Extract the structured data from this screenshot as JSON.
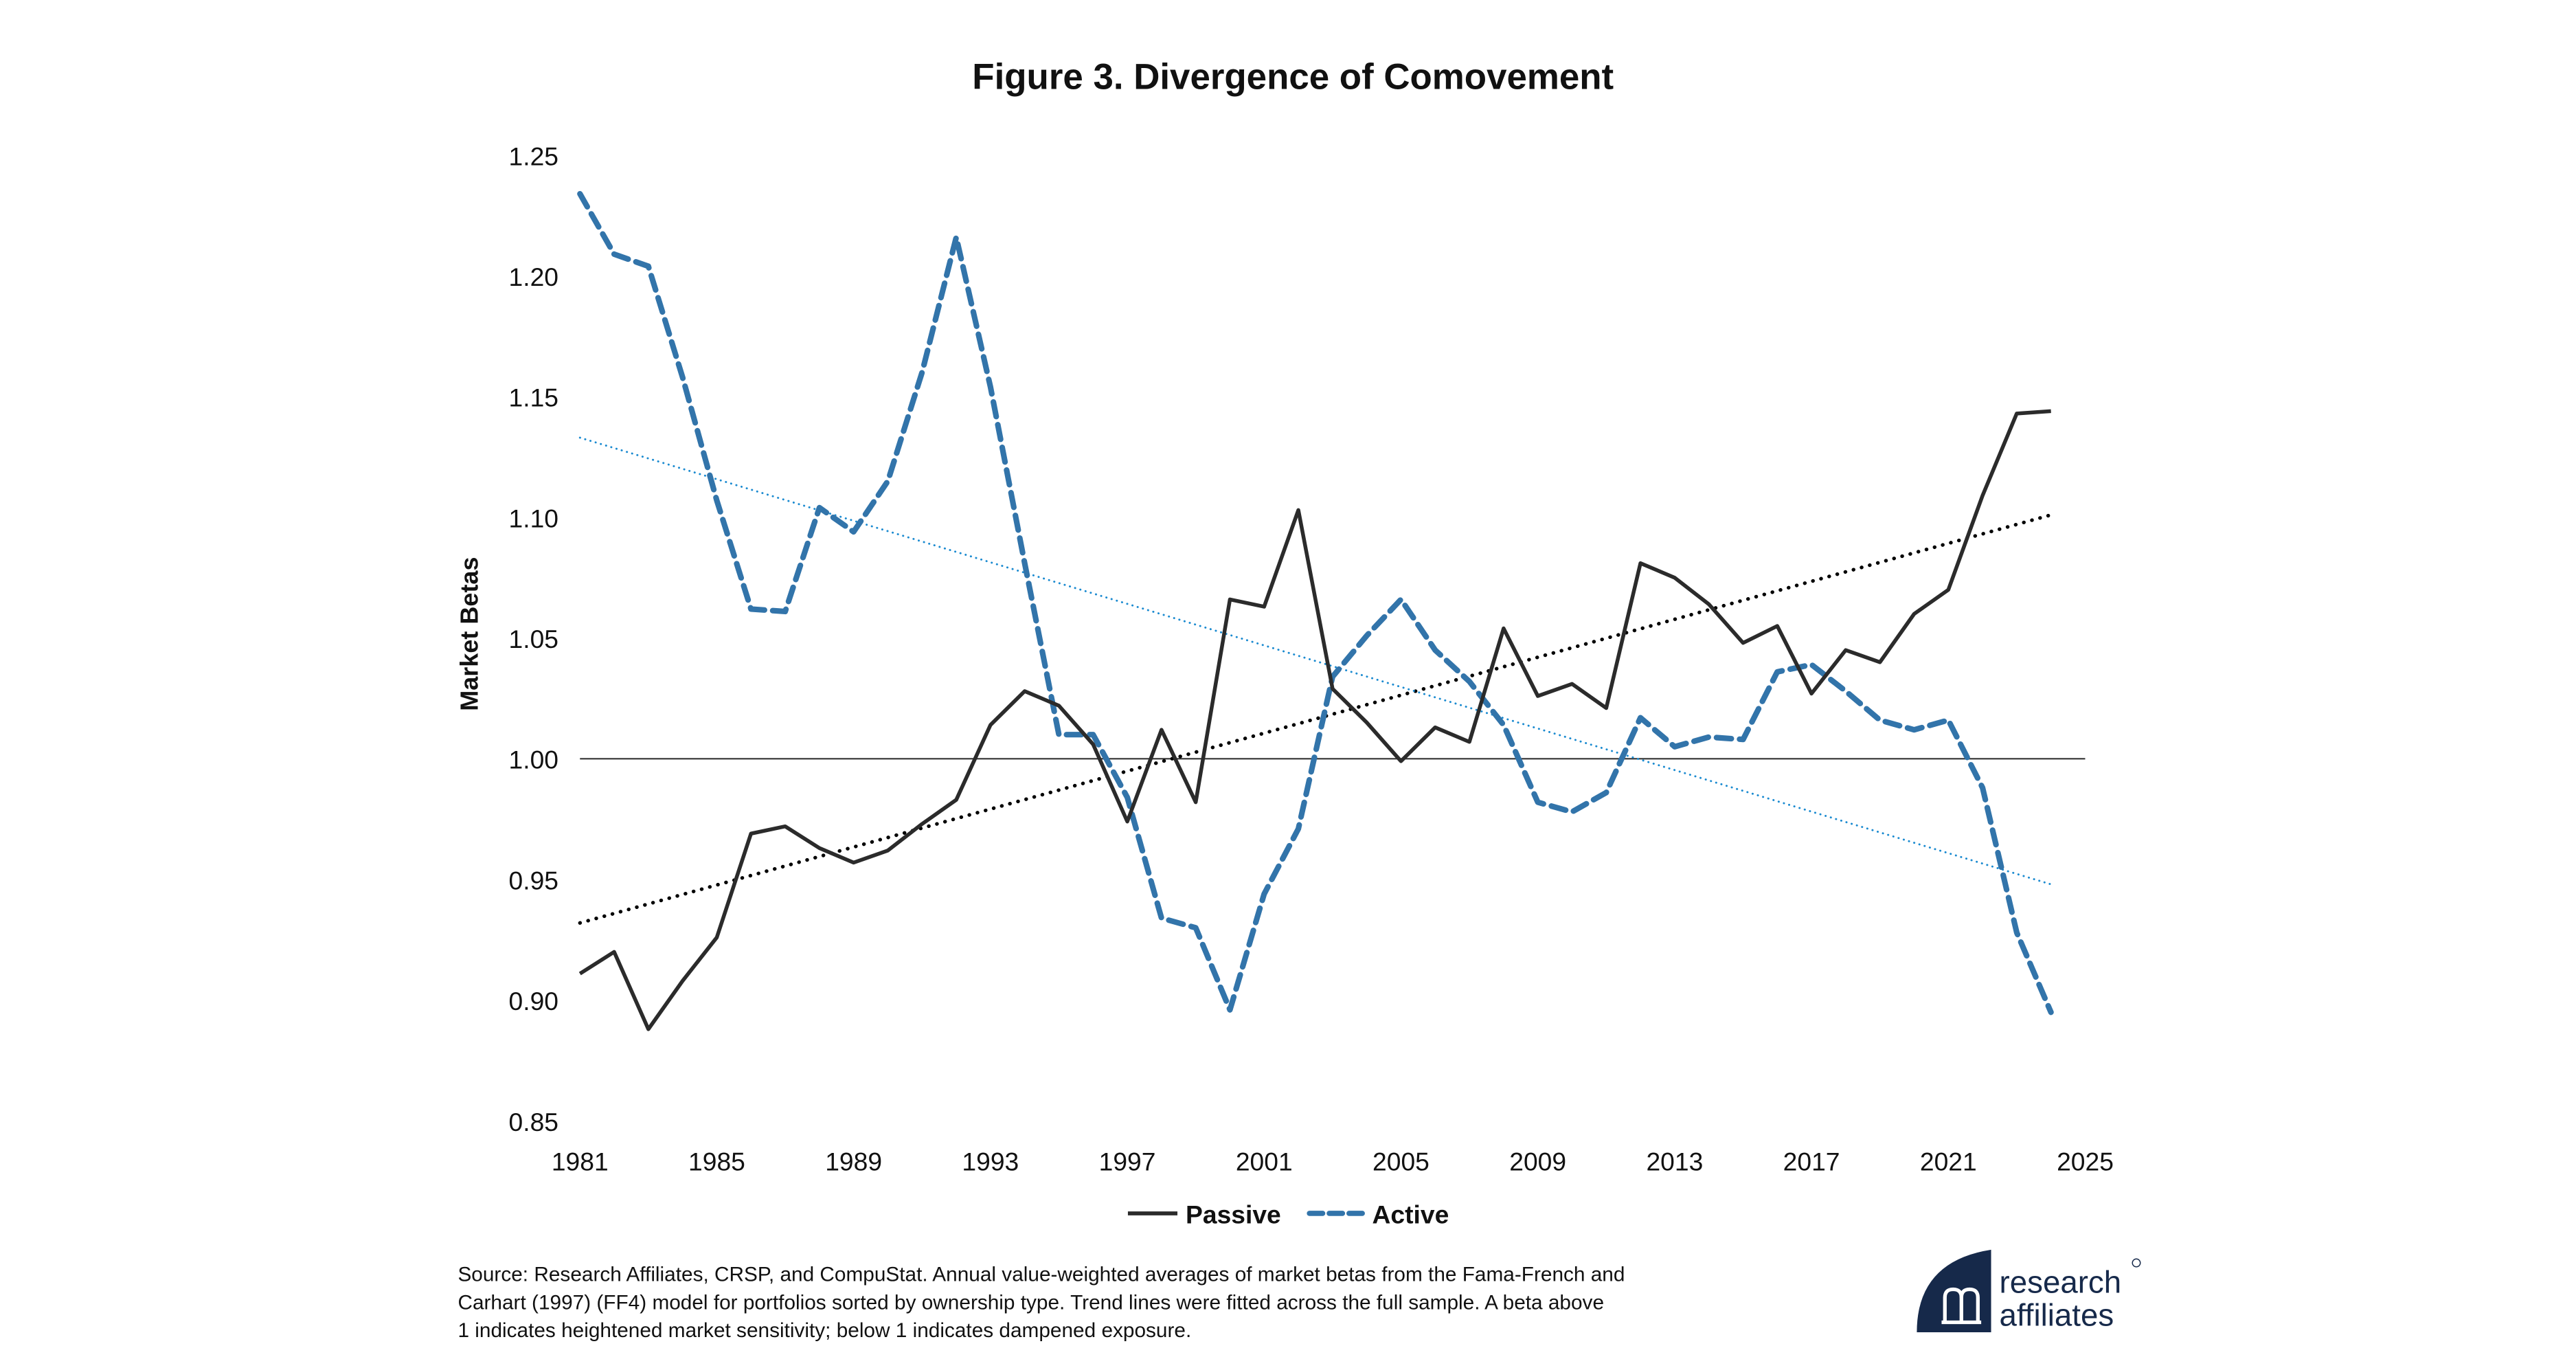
{
  "chart_data": {
    "type": "line",
    "title": "Figure 3. Divergence of Comovement",
    "ylabel": "Market Betas",
    "xlabel": "",
    "xlim": [
      1981,
      2025
    ],
    "ylim": [
      0.85,
      1.25
    ],
    "x_ticks": [
      "1981",
      "1985",
      "1989",
      "1993",
      "1997",
      "2001",
      "2005",
      "2009",
      "2013",
      "2017",
      "2021",
      "2025"
    ],
    "y_ticks": [
      "0.85",
      "0.90",
      "0.95",
      "1.00",
      "1.05",
      "1.10",
      "1.15",
      "1.20",
      "1.25"
    ],
    "grid": false,
    "reference_line": 1.0,
    "legend_position": "bottom",
    "x": [
      1981,
      1982,
      1983,
      1984,
      1985,
      1986,
      1987,
      1988,
      1989,
      1990,
      1991,
      1992,
      1993,
      1994,
      1995,
      1996,
      1997,
      1998,
      1999,
      2000,
      2001,
      2002,
      2003,
      2004,
      2005,
      2006,
      2007,
      2008,
      2009,
      2010,
      2011,
      2012,
      2013,
      2014,
      2015,
      2016,
      2017,
      2018,
      2019,
      2020,
      2021,
      2022,
      2023,
      2024
    ],
    "series": [
      {
        "name": "Passive",
        "color": "#2b2b2b",
        "style": "solid",
        "values": [
          0.911,
          0.92,
          0.888,
          0.908,
          0.926,
          0.969,
          0.972,
          0.963,
          0.957,
          0.962,
          0.973,
          0.983,
          1.014,
          1.028,
          1.022,
          1.006,
          0.974,
          1.012,
          0.982,
          1.066,
          1.063,
          1.103,
          1.029,
          1.015,
          0.999,
          1.013,
          1.007,
          1.054,
          1.026,
          1.031,
          1.021,
          1.081,
          1.075,
          1.064,
          1.048,
          1.055,
          1.027,
          1.045,
          1.04,
          1.06,
          1.07,
          1.109,
          1.143,
          1.144
        ],
        "trend": {
          "color": "#000000",
          "start": [
            1981,
            0.932
          ],
          "end": [
            2024,
            1.101
          ]
        }
      },
      {
        "name": "Active",
        "color": "#3274aa",
        "style": "dashed",
        "values": [
          1.234,
          1.209,
          1.204,
          1.158,
          1.107,
          1.062,
          1.061,
          1.104,
          1.094,
          1.115,
          1.16,
          1.216,
          1.154,
          1.081,
          1.01,
          1.01,
          0.984,
          0.934,
          0.93,
          0.896,
          0.944,
          0.971,
          1.034,
          1.051,
          1.066,
          1.045,
          1.032,
          1.014,
          0.982,
          0.978,
          0.986,
          1.017,
          1.005,
          1.009,
          1.008,
          1.036,
          1.039,
          1.028,
          1.016,
          1.012,
          1.016,
          0.988,
          0.928,
          0.895
        ],
        "trend": {
          "color": "#1a8ad0",
          "start": [
            1981,
            1.133
          ],
          "end": [
            2024,
            0.948
          ]
        }
      }
    ]
  },
  "source": {
    "lines": [
      "Source: Research Affiliates, CRSP, and CompuStat. Annual value-weighted averages of market betas from the Fama-French and",
      "Carhart (1997) (FF4) model for portfolios sorted by ownership type. Trend lines were fitted across the full sample. A beta above",
      "1 indicates heightened market sensitivity; below 1 indicates dampened exposure."
    ]
  },
  "logo": {
    "line1": "research",
    "line2": "affiliates",
    "color": "#16294a"
  }
}
